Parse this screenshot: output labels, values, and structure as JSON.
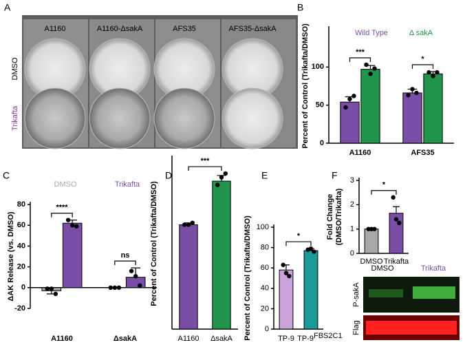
{
  "figure_a": {
    "label": "A",
    "columns": [
      "A1160",
      "A1160-ΔsakA",
      "AFS35",
      "AFS35-ΔsakA"
    ],
    "rows": [
      "DMSO",
      "Trikafta"
    ]
  },
  "chart_data": [
    {
      "type": "bar",
      "label": "B",
      "ylabel": "Percent of Control (Trikafta/DMSO)",
      "categories": [
        "A1160",
        "AFS35"
      ],
      "series": [
        {
          "name": "Wild Type",
          "color": "#7a4ea6",
          "values": [
            54,
            66
          ],
          "errors": [
            7,
            5
          ],
          "points": [
            [
              47,
              58,
              62
            ],
            [
              63,
              71,
              66
            ]
          ]
        },
        {
          "name": "Δ sakA",
          "color": "#23944b",
          "values": [
            97,
            91
          ],
          "errors": [
            5,
            3
          ],
          "points": [
            [
              103,
              91,
              98
            ],
            [
              93,
              88,
              93
            ]
          ]
        }
      ],
      "significance": [
        "***",
        "*"
      ],
      "ylim": [
        0,
        150
      ],
      "yticks": [
        0,
        50,
        100
      ]
    },
    {
      "type": "bar",
      "label": "C",
      "ylabel": "ΔAK Release (vs. DMSO)",
      "categories": [
        "A1160",
        "ΔsakA"
      ],
      "series": [
        {
          "name": "DMSO",
          "color": "#a8a8a8",
          "values": [
            -3,
            0
          ],
          "errors": [
            3,
            0
          ],
          "points": [
            [
              -1,
              -1,
              -6
            ],
            [
              0,
              0,
              0
            ]
          ]
        },
        {
          "name": "Trikafta",
          "color": "#7a4ea6",
          "values": [
            62,
            10
          ],
          "errors": [
            3,
            9
          ],
          "points": [
            [
              65,
              60,
              59
            ],
            [
              16,
              11,
              2
            ]
          ]
        }
      ],
      "significance": [
        "****",
        "ns"
      ],
      "ylim": [
        -20,
        80
      ],
      "yticks": [
        -20,
        0,
        20,
        40,
        60,
        80
      ]
    },
    {
      "type": "bar",
      "label": "D",
      "ylabel": "Percent of Control (Trikafta/DMSO)",
      "categories": [
        "A1160",
        "ΔsakA"
      ],
      "values": [
        55,
        78
      ],
      "errors": [
        1,
        3
      ],
      "points": [
        [
          55,
          55,
          56
        ],
        [
          76,
          80,
          82
        ]
      ],
      "colors": [
        "#7a4ea6",
        "#23944b"
      ],
      "significance": [
        "***"
      ],
      "ylim": [
        0,
        90
      ]
    },
    {
      "type": "bar",
      "label": "E",
      "ylabel": "Percent of Control (Trikafta/DMSO)",
      "categories": [
        "TP-9",
        "TP-9"
      ],
      "category_superscripts": [
        null,
        "FBS2C1"
      ],
      "values": [
        58,
        77
      ],
      "errors": [
        5,
        2
      ],
      "points": [
        [
          63,
          55,
          52
        ],
        [
          78,
          79,
          76
        ]
      ],
      "colors": [
        "#c9a3d9",
        "#1c9a9a"
      ],
      "significance": [
        "*"
      ],
      "ylim": [
        0,
        100
      ],
      "yticks": [
        0,
        20,
        40,
        60,
        80,
        100
      ]
    },
    {
      "type": "bar",
      "label": "F",
      "ylabel": [
        "Fold Change",
        "(DMSO/Trikafta)"
      ],
      "categories": [
        "DMSO",
        "Trikafta"
      ],
      "values": [
        1,
        1.65
      ],
      "errors": [
        0,
        0.27
      ],
      "points": [
        [
          1,
          1,
          1
        ],
        [
          2.3,
          1.4,
          1.25
        ]
      ],
      "colors": [
        "#a8a8a8",
        "#7a4ea6"
      ],
      "significance": [
        "*"
      ],
      "ylim": [
        0,
        3
      ],
      "yticks": [
        0,
        1,
        2,
        3
      ]
    }
  ],
  "blot": {
    "lanes": [
      "DMSO",
      "Trikafta"
    ],
    "rows": [
      "P-sakA",
      "Flag"
    ]
  }
}
